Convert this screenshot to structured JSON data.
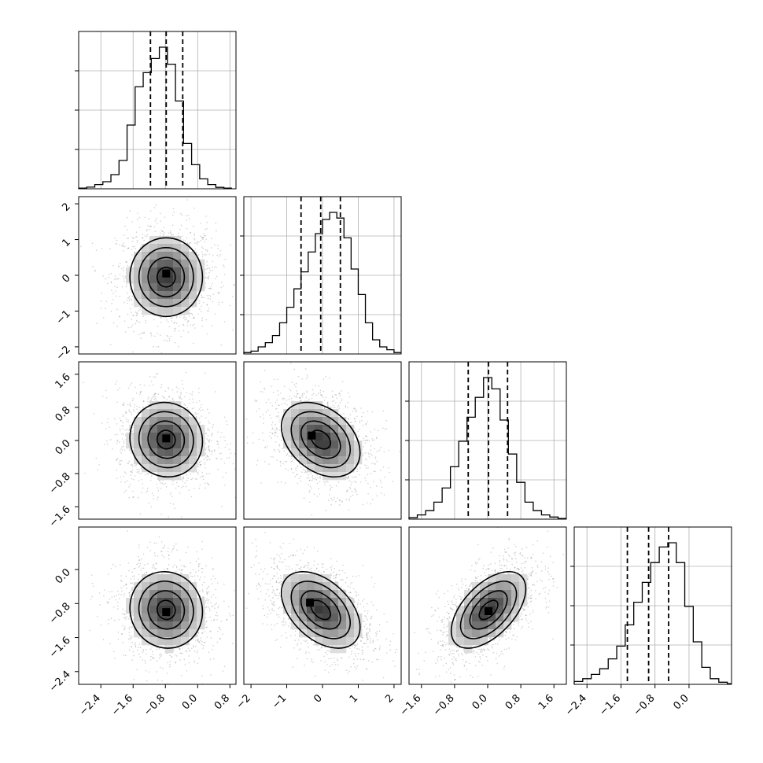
{
  "chart_data": {
    "type": "corner",
    "n_params": 4,
    "ranges": [
      [
        -2.95,
        0.95
      ],
      [
        -2.2,
        2.2
      ],
      [
        -1.9,
        1.9
      ],
      [
        -2.7,
        1.0
      ]
    ],
    "ticks": [
      [
        "−2.4",
        "−1.6",
        "−0.8",
        "0.0",
        "0.8"
      ],
      [
        "−2",
        "−1",
        "0",
        "1",
        "2"
      ],
      [
        "−1.6",
        "−0.8",
        "0.0",
        "0.8",
        "1.6"
      ],
      [
        "−2.4",
        "−1.6",
        "−0.8",
        "0.0"
      ]
    ],
    "tick_values": [
      [
        -2.4,
        -1.6,
        -0.8,
        0.0,
        0.8
      ],
      [
        -2,
        -1,
        0,
        1,
        2
      ],
      [
        -1.6,
        -0.8,
        0.0,
        0.8,
        1.6
      ],
      [
        -2.4,
        -1.6,
        -0.8,
        0.0
      ]
    ],
    "quantiles": [
      [
        -1.17,
        -0.78,
        -0.37
      ],
      [
        -0.6,
        -0.05,
        0.5
      ],
      [
        -0.47,
        0.02,
        0.48
      ],
      [
        -1.45,
        -0.95,
        -0.48
      ]
    ],
    "marginals": [
      {
        "param": 0,
        "bins": [
          -2.95,
          -2.75,
          -2.55,
          -2.35,
          -2.15,
          -1.95,
          -1.75,
          -1.55,
          -1.35,
          -1.15,
          -0.95,
          -0.75,
          -0.55,
          -0.35,
          -0.15,
          0.05,
          0.25,
          0.45,
          0.65,
          0.85
        ],
        "counts": [
          0.005,
          0.012,
          0.03,
          0.05,
          0.1,
          0.2,
          0.45,
          0.72,
          0.82,
          0.92,
          1.0,
          0.88,
          0.62,
          0.32,
          0.17,
          0.07,
          0.03,
          0.01,
          0.005
        ]
      },
      {
        "param": 1,
        "bins": [
          -2.2,
          -2.0,
          -1.8,
          -1.6,
          -1.4,
          -1.2,
          -1.0,
          -0.8,
          -0.6,
          -0.4,
          -0.2,
          0.0,
          0.2,
          0.4,
          0.6,
          0.8,
          1.0,
          1.2,
          1.4,
          1.6,
          1.8,
          2.0,
          2.2
        ],
        "counts": [
          0.01,
          0.02,
          0.05,
          0.08,
          0.13,
          0.22,
          0.33,
          0.46,
          0.58,
          0.72,
          0.85,
          0.95,
          1.0,
          0.96,
          0.82,
          0.6,
          0.42,
          0.22,
          0.1,
          0.05,
          0.03,
          0.01
        ]
      },
      {
        "param": 2,
        "bins": [
          -1.9,
          -1.7,
          -1.5,
          -1.3,
          -1.1,
          -0.9,
          -0.7,
          -0.5,
          -0.3,
          -0.1,
          0.1,
          0.3,
          0.5,
          0.7,
          0.9,
          1.1,
          1.3,
          1.5,
          1.7,
          1.9
        ],
        "counts": [
          0.01,
          0.03,
          0.06,
          0.12,
          0.22,
          0.37,
          0.55,
          0.72,
          0.86,
          1.0,
          0.92,
          0.7,
          0.46,
          0.26,
          0.12,
          0.06,
          0.03,
          0.015,
          0.005
        ]
      },
      {
        "param": 3,
        "bins": [
          -2.7,
          -2.5,
          -2.3,
          -2.1,
          -1.9,
          -1.7,
          -1.5,
          -1.3,
          -1.1,
          -0.9,
          -0.7,
          -0.5,
          -0.3,
          -0.1,
          0.1,
          0.3,
          0.5,
          0.7,
          0.9,
          1.0
        ],
        "counts": [
          0.02,
          0.04,
          0.07,
          0.11,
          0.18,
          0.27,
          0.42,
          0.58,
          0.72,
          0.86,
          0.97,
          1.0,
          0.86,
          0.55,
          0.3,
          0.12,
          0.04,
          0.015,
          0.005
        ]
      }
    ],
    "pairs": [
      {
        "x": 0,
        "y": 1,
        "cx": -0.78,
        "cy": -0.05,
        "sx": 0.45,
        "sy": 0.55,
        "rho": 0.0,
        "peak": [
          -0.78,
          0.05
        ]
      },
      {
        "x": 0,
        "y": 2,
        "cx": -0.78,
        "cy": 0.02,
        "sx": 0.45,
        "sy": 0.45,
        "rho": -0.05,
        "peak": [
          -0.78,
          0.05
        ]
      },
      {
        "x": 1,
        "y": 2,
        "cx": -0.05,
        "cy": 0.02,
        "sx": 0.55,
        "sy": 0.45,
        "rho": -0.35,
        "peak": [
          -0.3,
          0.12
        ]
      },
      {
        "x": 0,
        "y": 3,
        "cx": -0.78,
        "cy": -0.95,
        "sx": 0.45,
        "sy": 0.45,
        "rho": -0.05,
        "peak": [
          -0.78,
          -1.0
        ]
      },
      {
        "x": 1,
        "y": 3,
        "cx": -0.05,
        "cy": -0.95,
        "sx": 0.55,
        "sy": 0.45,
        "rho": -0.45,
        "peak": [
          -0.35,
          -0.78
        ]
      },
      {
        "x": 2,
        "y": 3,
        "cx": 0.02,
        "cy": -0.95,
        "sx": 0.45,
        "sy": 0.45,
        "rho": 0.55,
        "peak": [
          0.02,
          -0.98
        ]
      }
    ]
  }
}
